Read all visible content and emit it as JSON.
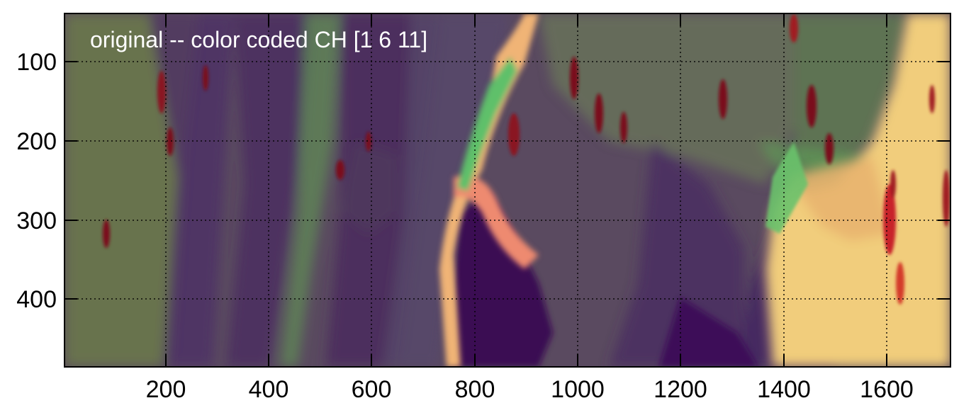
{
  "image": {
    "title": "original -- color coded CH [1 6 11]",
    "x_axis": {
      "range": [
        0,
        1718
      ],
      "ticks": [
        {
          "value": 200,
          "label": "200"
        },
        {
          "value": 400,
          "label": "400"
        },
        {
          "value": 600,
          "label": "600"
        },
        {
          "value": 800,
          "label": "800"
        },
        {
          "value": 1000,
          "label": "1000"
        },
        {
          "value": 1200,
          "label": "1200"
        },
        {
          "value": 1400,
          "label": "1400"
        },
        {
          "value": 1600,
          "label": "1600"
        }
      ]
    },
    "y_axis": {
      "range": [
        40,
        486
      ],
      "inverted": true,
      "ticks": [
        {
          "value": 100,
          "label": "100"
        },
        {
          "value": 200,
          "label": "200"
        },
        {
          "value": 300,
          "label": "300"
        },
        {
          "value": 400,
          "label": "400"
        }
      ]
    },
    "grid": "dotted",
    "colors": {
      "purple": "#4a2a5e",
      "dark_purple": "#3a0d52",
      "green": "#5fae5a",
      "olive": "#6e7348",
      "yellow": "#f3d27c",
      "salmon": "#ee9a78",
      "red": "#c8202a",
      "dark_red": "#7a0f1a"
    }
  }
}
